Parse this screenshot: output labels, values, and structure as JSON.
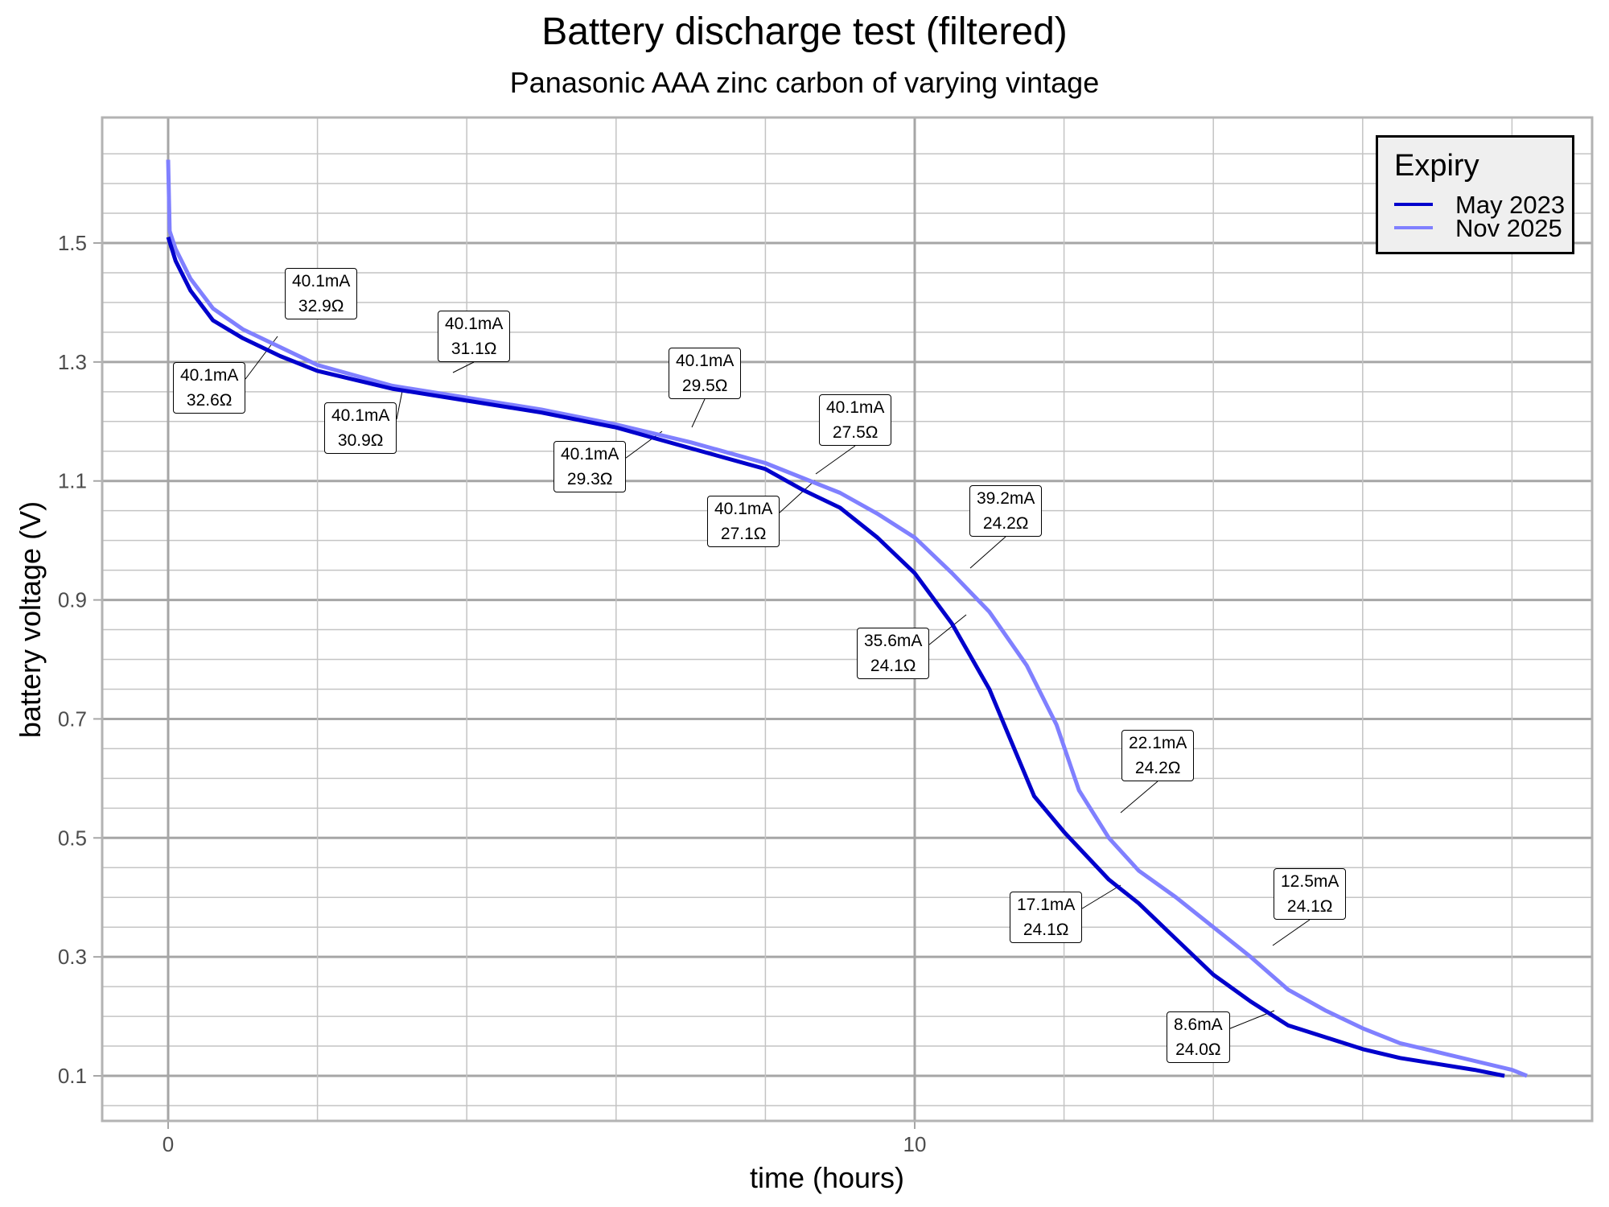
{
  "title": "Battery discharge test (filtered)",
  "subtitle": "Panasonic AAA zinc carbon of varying vintage",
  "x_axis": {
    "label": "time (hours)",
    "ticks": [
      "0",
      "10"
    ]
  },
  "y_axis": {
    "label": "battery voltage (V)",
    "ticks": [
      "1.5",
      "1.3",
      "1.1",
      "0.9",
      "0.7",
      "0.5",
      "0.3",
      "0.1"
    ]
  },
  "legend": {
    "title": "Expiry",
    "items": [
      {
        "label": "May 2023",
        "color": "#0000cc"
      },
      {
        "label": "Nov 2025",
        "color": "#8080ff"
      }
    ]
  },
  "annotations": [
    {
      "current": "40.1mA",
      "resistance": "32.6Ω"
    },
    {
      "current": "40.1mA",
      "resistance": "32.9Ω"
    },
    {
      "current": "40.1mA",
      "resistance": "30.9Ω"
    },
    {
      "current": "40.1mA",
      "resistance": "31.1Ω"
    },
    {
      "current": "40.1mA",
      "resistance": "29.3Ω"
    },
    {
      "current": "40.1mA",
      "resistance": "29.5Ω"
    },
    {
      "current": "40.1mA",
      "resistance": "27.1Ω"
    },
    {
      "current": "40.1mA",
      "resistance": "27.5Ω"
    },
    {
      "current": "35.6mA",
      "resistance": "24.1Ω"
    },
    {
      "current": "39.2mA",
      "resistance": "24.2Ω"
    },
    {
      "current": "17.1mA",
      "resistance": "24.1Ω"
    },
    {
      "current": "22.1mA",
      "resistance": "24.2Ω"
    },
    {
      "current": "8.6mA",
      "resistance": "24.0Ω"
    },
    {
      "current": "12.5mA",
      "resistance": "24.1Ω"
    }
  ],
  "chart_data": {
    "type": "line",
    "title": "Battery discharge test (filtered)",
    "subtitle": "Panasonic AAA zinc carbon of varying vintage",
    "xlabel": "time (hours)",
    "ylabel": "battery voltage (V)",
    "xlim": [
      -0.9,
      19.1
    ],
    "ylim": [
      0.025,
      1.71
    ],
    "x_ticks": [
      0,
      10
    ],
    "y_ticks": [
      0.1,
      0.3,
      0.5,
      0.7,
      0.9,
      1.1,
      1.3,
      1.5
    ],
    "grid": true,
    "legend_position": "top-right",
    "legend_title": "Expiry",
    "series": [
      {
        "name": "May 2023",
        "color": "#0000cc",
        "x": [
          0,
          0.1,
          0.3,
          0.6,
          1.0,
          1.5,
          2.0,
          3.0,
          4.0,
          5.0,
          6.0,
          7.0,
          8.0,
          8.5,
          9.0,
          9.5,
          10.0,
          10.5,
          11.0,
          11.3,
          11.6,
          12.0,
          12.3,
          12.6,
          13.0,
          13.5,
          14.0,
          14.5,
          15.0,
          15.5,
          16.0,
          16.5,
          17.0,
          17.5,
          17.9
        ],
        "y": [
          1.51,
          1.47,
          1.42,
          1.37,
          1.34,
          1.31,
          1.285,
          1.255,
          1.235,
          1.215,
          1.19,
          1.155,
          1.12,
          1.085,
          1.055,
          1.005,
          0.945,
          0.86,
          0.75,
          0.66,
          0.57,
          0.51,
          0.47,
          0.43,
          0.39,
          0.33,
          0.27,
          0.225,
          0.185,
          0.165,
          0.145,
          0.13,
          0.12,
          0.11,
          0.1
        ]
      },
      {
        "name": "Nov 2025",
        "color": "#8080ff",
        "x": [
          0,
          0.02,
          0.1,
          0.3,
          0.6,
          1.0,
          1.5,
          2.0,
          3.0,
          4.0,
          5.0,
          6.0,
          7.0,
          8.0,
          8.5,
          9.0,
          9.5,
          10.0,
          10.5,
          11.0,
          11.5,
          11.9,
          12.2,
          12.6,
          13.0,
          13.5,
          14.0,
          14.5,
          15.0,
          15.5,
          16.0,
          16.5,
          17.0,
          17.5,
          18.0,
          18.2
        ],
        "y": [
          1.64,
          1.52,
          1.49,
          1.44,
          1.39,
          1.355,
          1.325,
          1.295,
          1.26,
          1.24,
          1.22,
          1.195,
          1.165,
          1.13,
          1.105,
          1.08,
          1.045,
          1.005,
          0.945,
          0.88,
          0.79,
          0.69,
          0.58,
          0.5,
          0.445,
          0.4,
          0.35,
          0.3,
          0.245,
          0.21,
          0.18,
          0.155,
          0.14,
          0.125,
          0.11,
          0.1
        ]
      }
    ],
    "annotations": [
      {
        "series": "May 2023",
        "text": "40.1mA / 32.6Ω"
      },
      {
        "series": "Nov 2025",
        "text": "40.1mA / 32.9Ω"
      },
      {
        "series": "May 2023",
        "text": "40.1mA / 30.9Ω"
      },
      {
        "series": "Nov 2025",
        "text": "40.1mA / 31.1Ω"
      },
      {
        "series": "May 2023",
        "text": "40.1mA / 29.3Ω"
      },
      {
        "series": "Nov 2025",
        "text": "40.1mA / 29.5Ω"
      },
      {
        "series": "May 2023",
        "text": "40.1mA / 27.1Ω"
      },
      {
        "series": "Nov 2025",
        "text": "40.1mA / 27.5Ω"
      },
      {
        "series": "May 2023",
        "text": "35.6mA / 24.1Ω"
      },
      {
        "series": "Nov 2025",
        "text": "39.2mA / 24.2Ω"
      },
      {
        "series": "May 2023",
        "text": "17.1mA / 24.1Ω"
      },
      {
        "series": "Nov 2025",
        "text": "22.1mA / 24.2Ω"
      },
      {
        "series": "May 2023",
        "text": "8.6mA / 24.0Ω"
      },
      {
        "series": "Nov 2025",
        "text": "12.5mA / 24.1Ω"
      }
    ]
  }
}
